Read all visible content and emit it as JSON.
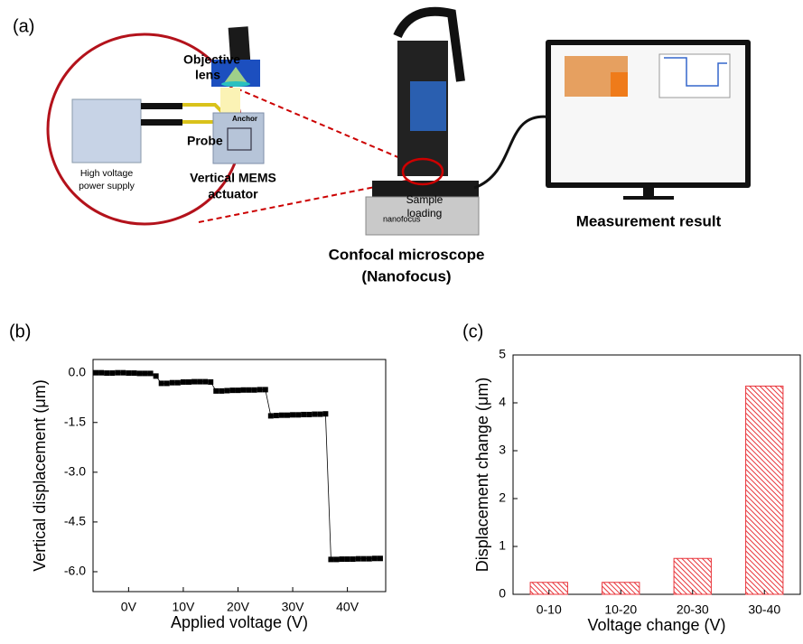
{
  "panel_a": {
    "panel_label": "(a)",
    "objective_lens": [
      "Objective",
      "lens"
    ],
    "anchor": "Anchor",
    "probe": "Probe",
    "power_supply": [
      "High voltage",
      "power supply"
    ],
    "actuator": [
      "Vertical MEMS",
      "actuator"
    ],
    "sample_loading": [
      "Sample",
      "loading"
    ],
    "brand": "nanofocus",
    "measurement_result": "Measurement result",
    "microscope": [
      "Confocal microscope",
      "(Nanofocus)"
    ]
  },
  "chart_data": [
    {
      "type": "line",
      "panel_label": "(b)",
      "x_label": "Applied voltage (V)",
      "y_label": "Vertical displacement (μm)",
      "x": [
        -6,
        -5,
        -4,
        -3,
        -2,
        -1,
        0,
        1,
        2,
        3,
        4,
        5,
        6,
        7,
        8,
        9,
        10,
        11,
        12,
        13,
        14,
        15,
        16,
        17,
        18,
        19,
        20,
        21,
        22,
        23,
        24,
        25,
        26,
        27,
        28,
        29,
        30,
        31,
        32,
        33,
        34,
        35,
        36,
        37,
        38,
        39,
        40,
        41,
        42,
        43,
        44,
        45,
        46
      ],
      "values": [
        0,
        0,
        -0.01,
        -0.01,
        0,
        0,
        -0.01,
        -0.01,
        -0.02,
        -0.02,
        -0.02,
        -0.1,
        -0.32,
        -0.32,
        -0.3,
        -0.3,
        -0.28,
        -0.28,
        -0.27,
        -0.27,
        -0.27,
        -0.28,
        -0.55,
        -0.55,
        -0.54,
        -0.53,
        -0.53,
        -0.52,
        -0.52,
        -0.52,
        -0.51,
        -0.51,
        -1.3,
        -1.29,
        -1.28,
        -1.28,
        -1.27,
        -1.27,
        -1.26,
        -1.26,
        -1.25,
        -1.25,
        -1.24,
        -5.63,
        -5.63,
        -5.62,
        -5.62,
        -5.62,
        -5.61,
        -5.61,
        -5.61,
        -5.6,
        -5.6
      ],
      "color": "#000000",
      "xlim": [
        -6.5,
        47
      ],
      "xticks": [
        {
          "value": 0,
          "label": "0V"
        },
        {
          "value": 10,
          "label": "10V"
        },
        {
          "value": 20,
          "label": "20V"
        },
        {
          "value": 30,
          "label": "30V"
        },
        {
          "value": 40,
          "label": "40V"
        }
      ],
      "ylim": [
        -6.6,
        0.4
      ],
      "yticks": [
        {
          "value": 0,
          "label": "0.0"
        },
        -1.5,
        {
          "value": -3,
          "label": "-3.0"
        },
        -4.5,
        {
          "value": -6,
          "label": "-6.0"
        }
      ]
    },
    {
      "type": "bar",
      "panel_label": "(c)",
      "x_label": "Voltage change (V)",
      "y_label": "Displacement change (μm)",
      "categories": [
        "0-10",
        "10-20",
        "20-30",
        "30-40"
      ],
      "values": [
        0.25,
        0.25,
        0.75,
        4.35
      ],
      "color": "#e8343a",
      "ylim": [
        0,
        5
      ],
      "yticks": [
        0,
        1,
        2,
        3,
        4,
        5
      ]
    }
  ]
}
